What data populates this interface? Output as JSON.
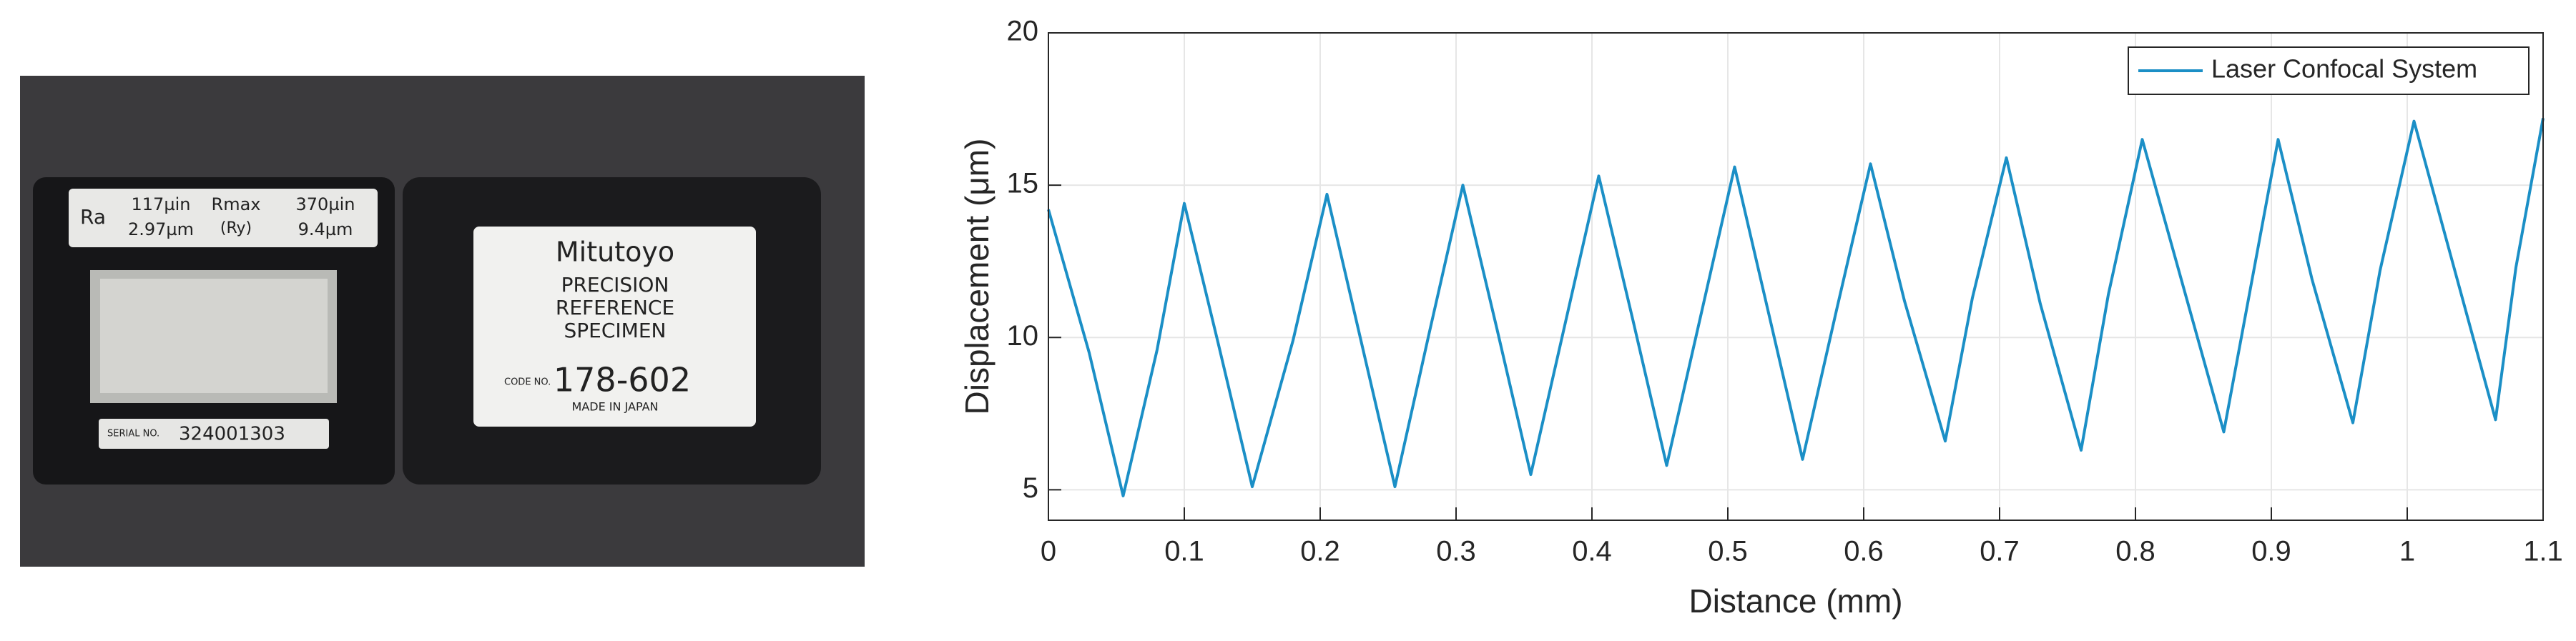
{
  "photo": {
    "ra": "Ra",
    "ra_in": "117µin",
    "ra_um": "2.97µm",
    "rmax": "Rmax",
    "ry": "(Ry)",
    "rmax_in": "370µin",
    "rmax_um": "9.4µm",
    "serial_label": "SERIAL NO.",
    "serial": "324001303",
    "brand": "Mitutoyo",
    "line1": "PRECISION",
    "line2": "REFERENCE",
    "line3": "SPECIMEN",
    "code_label": "CODE NO.",
    "code": "178-602",
    "origin": "MADE IN JAPAN"
  },
  "chart_data": {
    "type": "line",
    "xlabel": "Distance (mm)",
    "ylabel": "Displacement (μm)",
    "x": [
      0,
      0.03,
      0.055,
      0.08,
      0.1,
      0.125,
      0.15,
      0.18,
      0.205,
      0.23,
      0.255,
      0.28,
      0.305,
      0.33,
      0.355,
      0.38,
      0.405,
      0.43,
      0.455,
      0.48,
      0.505,
      0.53,
      0.555,
      0.58,
      0.605,
      0.63,
      0.66,
      0.68,
      0.705,
      0.73,
      0.76,
      0.78,
      0.805,
      0.835,
      0.865,
      0.885,
      0.905,
      0.93,
      0.96,
      0.98,
      1.005,
      1.035,
      1.065,
      1.08,
      1.1
    ],
    "series": [
      {
        "name": "Laser Confocal System",
        "color": "#1b8fc6",
        "values": [
          14.2,
          9.5,
          4.8,
          9.6,
          14.4,
          9.8,
          5.1,
          9.9,
          14.7,
          9.9,
          5.1,
          10.1,
          15.0,
          10.3,
          5.5,
          10.4,
          15.3,
          10.6,
          5.8,
          10.7,
          15.6,
          10.8,
          6.0,
          10.9,
          15.7,
          11.2,
          6.6,
          11.3,
          15.9,
          11.1,
          6.3,
          11.4,
          16.5,
          11.7,
          6.9,
          11.7,
          16.5,
          11.9,
          7.2,
          12.2,
          17.1,
          12.2,
          7.3,
          12.3,
          17.2
        ]
      }
    ],
    "xlim": [
      0,
      1.1
    ],
    "xticks": [
      0,
      0.1,
      0.2,
      0.3,
      0.4,
      0.5,
      0.6,
      0.7,
      0.8,
      0.9,
      1,
      1.1
    ],
    "ylim": [
      4,
      20
    ],
    "yticks": [
      5,
      10,
      15,
      20
    ],
    "grid": true,
    "legend": "northeast"
  }
}
